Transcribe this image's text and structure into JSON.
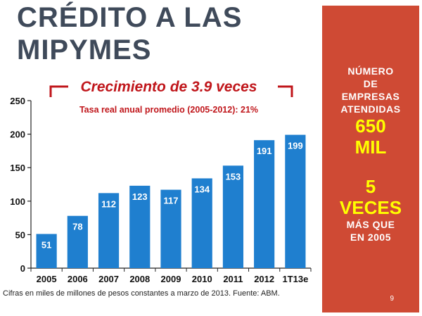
{
  "slide": {
    "title_line1": "CRÉDITO A LAS",
    "title_line2": "MIPYMES",
    "headline": "Crecimiento de 3.9 veces",
    "subheadline": "Tasa real anual promedio (2005-2012): 21%",
    "footnote": "Cifras en miles de millones de pesos constantes a marzo de 2013. Fuente: ABM.",
    "page_number": "9"
  },
  "side_panel": {
    "label1": "NÚMERO",
    "label2": "DE",
    "label3": "EMPRESAS",
    "label4": "ATENDIDAS",
    "big1": "650",
    "big2": "MIL",
    "big3": "5",
    "big4": "VECES",
    "label5": "MÁS QUE",
    "label6": "EN 2005",
    "background_color": "#cf4a34",
    "highlight_color": "#ffff00"
  },
  "chart_data": {
    "type": "bar",
    "categories": [
      "2005",
      "2006",
      "2007",
      "2008",
      "2009",
      "2010",
      "2011",
      "2012",
      "1T13e"
    ],
    "values": [
      51,
      78,
      112,
      123,
      117,
      134,
      153,
      191,
      199
    ],
    "data_labels": [
      "51",
      "78",
      "112",
      "123",
      "117",
      "134",
      "153",
      "191",
      "199"
    ],
    "ylim": [
      0,
      250
    ],
    "yticks": [
      0,
      50,
      100,
      150,
      200,
      250
    ],
    "bar_color": "#1f7fcf",
    "grid": false,
    "legend": false
  }
}
